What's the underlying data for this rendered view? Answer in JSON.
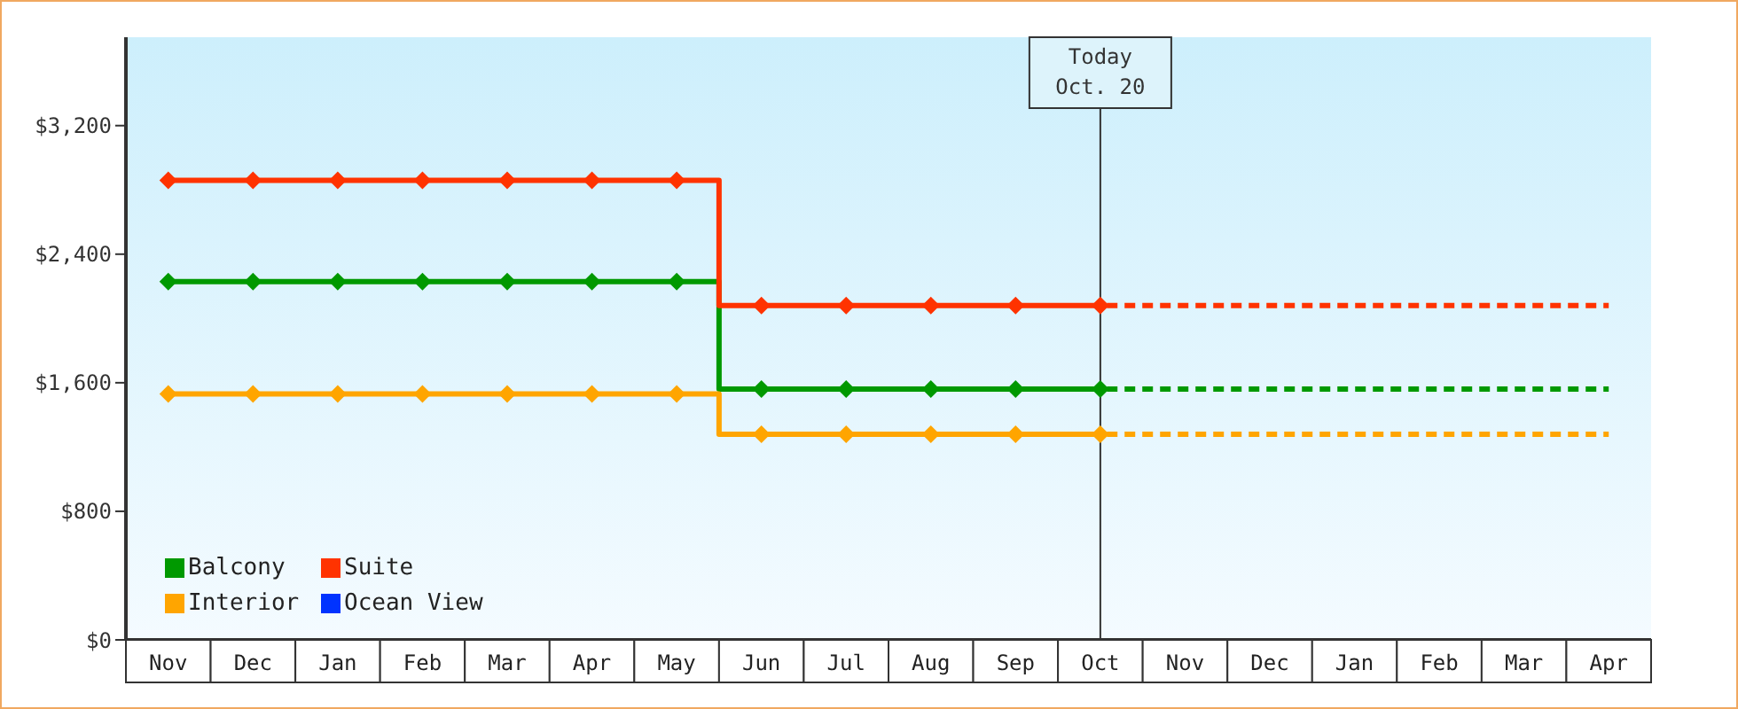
{
  "chart_data": {
    "type": "step",
    "legend": "bottom left",
    "marker": "diamond",
    "grid": false,
    "categories": [
      "Nov",
      "Dec",
      "Jan",
      "Feb",
      "Mar",
      "Apr",
      "May",
      "Jun",
      "Jul",
      "Aug",
      "Sep",
      "Oct",
      "Nov",
      "Dec",
      "Jan",
      "Feb",
      "Mar",
      "Apr"
    ],
    "ylim": [
      0,
      3750
    ],
    "yticks": [
      {
        "value": 0,
        "label": "$0"
      },
      {
        "value": 800,
        "label": "$800"
      },
      {
        "value": 1600,
        "label": "$1,600"
      },
      {
        "value": 2400,
        "label": "$2,400"
      },
      {
        "value": 3200,
        "label": "$3,200"
      }
    ],
    "ref_lines": [
      {
        "axis": "x",
        "value": "Oct",
        "label": "Today\nOct. 20",
        "color": "#333333"
      }
    ],
    "series": [
      {
        "name": "Balcony",
        "color": "#009900",
        "values": [
          2230,
          2230,
          2230,
          2230,
          2230,
          2230,
          2230,
          1560,
          1560,
          1560,
          1560,
          1560,
          null,
          null,
          null,
          null,
          null,
          null
        ]
      },
      {
        "name": "Suite",
        "color": "#ff3300",
        "values": [
          2860,
          2860,
          2860,
          2860,
          2860,
          2860,
          2860,
          2080,
          2080,
          2080,
          2080,
          2080,
          null,
          null,
          null,
          null,
          null,
          null
        ]
      },
      {
        "name": "Interior",
        "color": "#ffa500",
        "values": [
          1530,
          1530,
          1530,
          1530,
          1530,
          1530,
          1530,
          1280,
          1280,
          1280,
          1280,
          1280,
          null,
          null,
          null,
          null,
          null,
          null
        ]
      },
      {
        "name": "Ocean View",
        "color": "#0033ff",
        "values": [
          null,
          null,
          null,
          null,
          null,
          null,
          null,
          null,
          null,
          null,
          null,
          null,
          null,
          null,
          null,
          null,
          null,
          null
        ]
      },
      {
        "color": "#009900",
        "line_style": "dashed",
        "marker": "none",
        "values": [
          null,
          null,
          null,
          null,
          null,
          null,
          null,
          null,
          null,
          null,
          null,
          1560,
          1560,
          1560,
          1560,
          1560,
          1560,
          1560
        ]
      },
      {
        "color": "#ff3300",
        "line_style": "dashed",
        "marker": "none",
        "values": [
          null,
          null,
          null,
          null,
          null,
          null,
          null,
          null,
          null,
          null,
          null,
          2080,
          2080,
          2080,
          2080,
          2080,
          2080,
          2080
        ]
      },
      {
        "color": "#ffa500",
        "line_style": "dashed",
        "marker": "none",
        "values": [
          null,
          null,
          null,
          null,
          null,
          null,
          null,
          null,
          null,
          null,
          null,
          1280,
          1280,
          1280,
          1280,
          1280,
          1280,
          1280
        ]
      }
    ]
  }
}
